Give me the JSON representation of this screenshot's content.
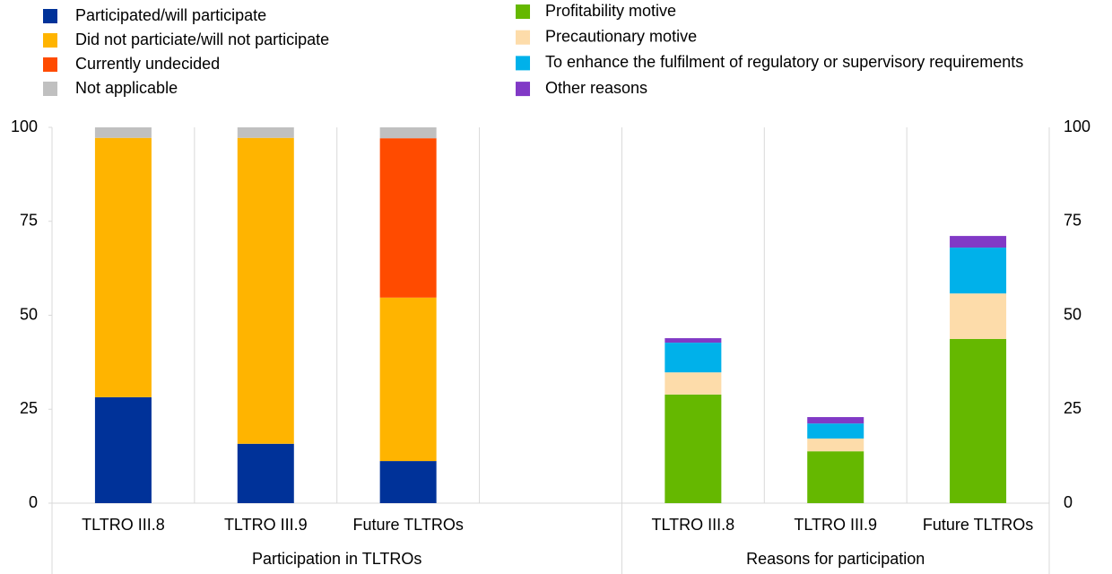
{
  "chart_data": {
    "type": "stacked_bar",
    "categories": [
      "TLTRO III.8",
      "TLTRO III.9",
      "Future TLTROs",
      null,
      "TLTRO III.8",
      "TLTRO III.9",
      "Future TLTROs"
    ],
    "groups": [
      "Participation in TLTROs",
      "Reasons for participation"
    ],
    "series": [
      {
        "name": "Participated/will participate",
        "color": "#003299",
        "values": [
          28.2,
          15.8,
          11.2,
          null,
          null,
          null,
          null
        ]
      },
      {
        "name": "Did not particiate/will not participate",
        "color": "#ffb400",
        "values": [
          69.0,
          81.4,
          43.5,
          null,
          null,
          null,
          null
        ]
      },
      {
        "name": "Currently undecided",
        "color": "#ff4b00",
        "values": [
          null,
          null,
          42.4,
          null,
          null,
          null,
          null
        ]
      },
      {
        "name": "Not applicable",
        "color": "#c0c0c0",
        "values": [
          2.8,
          2.8,
          2.9,
          null,
          null,
          null,
          null
        ]
      },
      {
        "name": "Profitability motive",
        "color": "#65b800",
        "values": [
          null,
          null,
          null,
          null,
          28.9,
          13.8,
          43.7
        ]
      },
      {
        "name": "Precautionary motive",
        "color": "#fddcaa",
        "values": [
          null,
          null,
          null,
          null,
          5.9,
          3.4,
          12.1
        ]
      },
      {
        "name": "To enhance the fulfilment of regulatory or supervisory requirements",
        "color": "#00b1ea",
        "values": [
          null,
          null,
          null,
          null,
          7.9,
          4.0,
          12.2
        ]
      },
      {
        "name": "Other reasons",
        "color": "#8139c6",
        "values": [
          null,
          null,
          null,
          null,
          1.2,
          1.7,
          3.1
        ]
      }
    ],
    "ylim": [
      0,
      100
    ],
    "yticks": [
      0,
      25,
      50,
      75,
      100
    ]
  }
}
